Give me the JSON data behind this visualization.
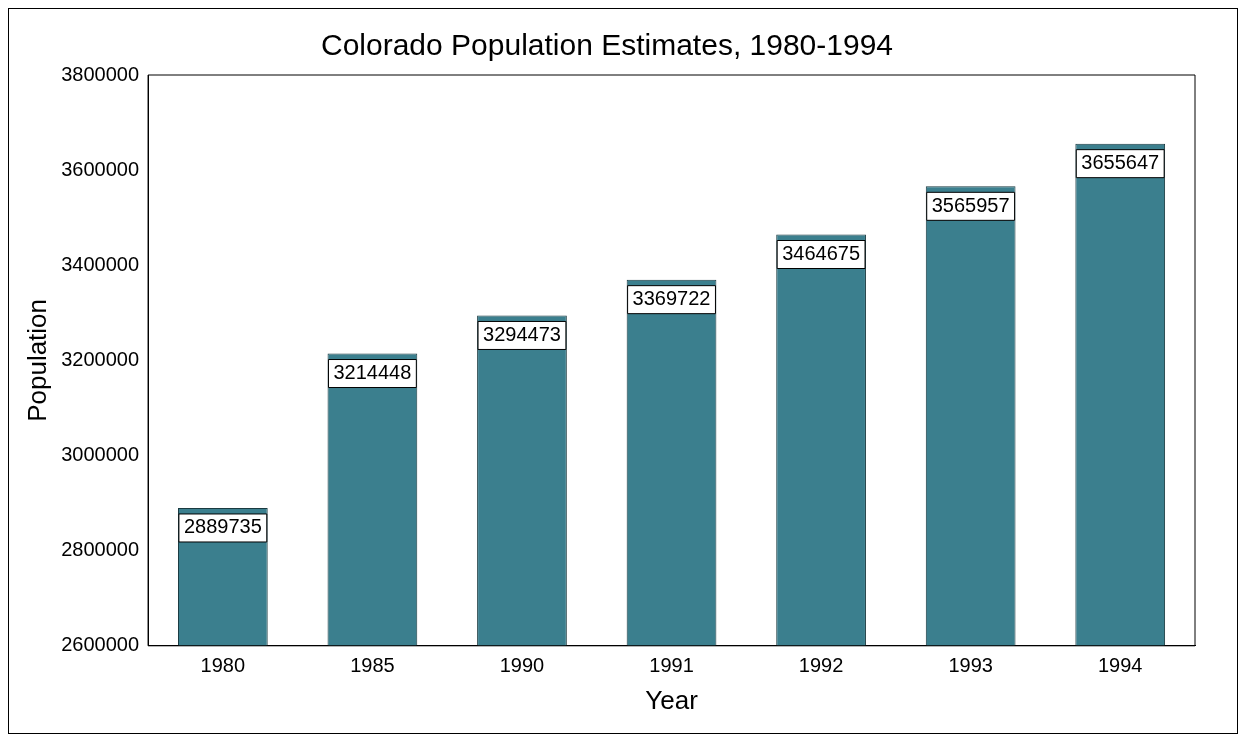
{
  "chart_data": {
    "type": "bar",
    "title": "Colorado Population Estimates, 1980-1994",
    "xlabel": "Year",
    "ylabel": "Population",
    "categories": [
      "1980",
      "1985",
      "1990",
      "1991",
      "1992",
      "1993",
      "1994"
    ],
    "values": [
      2889735,
      3214448,
      3294473,
      3369722,
      3464675,
      3565957,
      3655647
    ],
    "color": "#3b7f8e",
    "ylim": [
      2600000,
      3800000
    ],
    "yticks": [
      2600000,
      2800000,
      3000000,
      3200000,
      3400000,
      3600000,
      3800000
    ],
    "grid": false,
    "data_labels": true
  }
}
